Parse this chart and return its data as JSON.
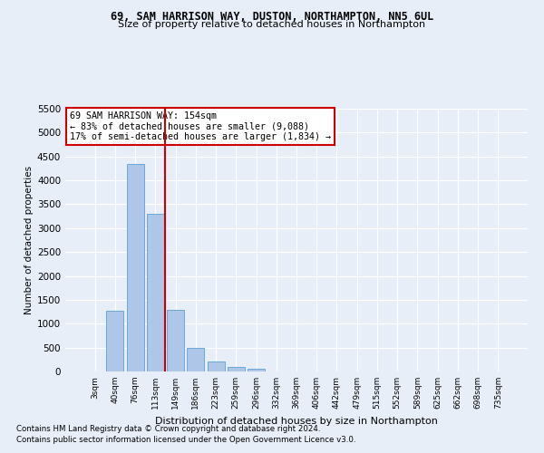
{
  "title_line1": "69, SAM HARRISON WAY, DUSTON, NORTHAMPTON, NN5 6UL",
  "title_line2": "Size of property relative to detached houses in Northampton",
  "xlabel": "Distribution of detached houses by size in Northampton",
  "ylabel": "Number of detached properties",
  "footnote1": "Contains HM Land Registry data © Crown copyright and database right 2024.",
  "footnote2": "Contains public sector information licensed under the Open Government Licence v3.0.",
  "bar_labels": [
    "3sqm",
    "40sqm",
    "76sqm",
    "113sqm",
    "149sqm",
    "186sqm",
    "223sqm",
    "259sqm",
    "296sqm",
    "332sqm",
    "369sqm",
    "406sqm",
    "442sqm",
    "479sqm",
    "515sqm",
    "552sqm",
    "589sqm",
    "625sqm",
    "662sqm",
    "698sqm",
    "735sqm"
  ],
  "bar_values": [
    0,
    1270,
    4340,
    3300,
    1290,
    490,
    210,
    90,
    60,
    0,
    0,
    0,
    0,
    0,
    0,
    0,
    0,
    0,
    0,
    0,
    0
  ],
  "bar_color": "#aec6e8",
  "bar_edgecolor": "#5a9fd4",
  "ylim": [
    0,
    5500
  ],
  "yticks": [
    0,
    500,
    1000,
    1500,
    2000,
    2500,
    3000,
    3500,
    4000,
    4500,
    5000,
    5500
  ],
  "vline_color": "#cc0000",
  "annotation_text": "69 SAM HARRISON WAY: 154sqm\n← 83% of detached houses are smaller (9,088)\n17% of semi-detached houses are larger (1,834) →",
  "annotation_box_color": "#cc0000",
  "background_color": "#e8eef8",
  "grid_color": "#ffffff"
}
